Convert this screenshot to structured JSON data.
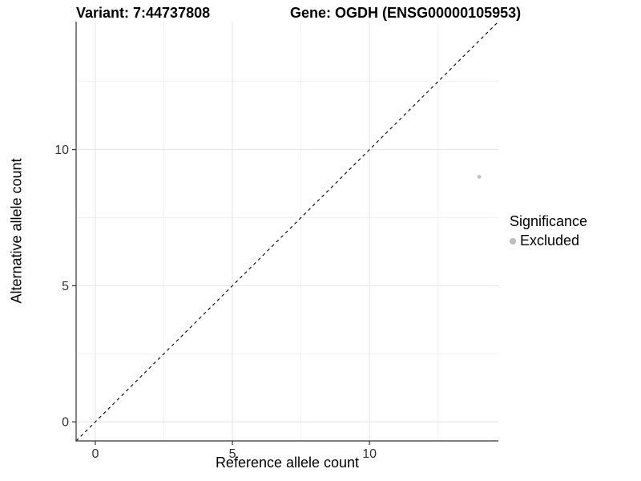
{
  "chart_data": {
    "type": "scatter",
    "title_left": "Variant: 7:44737808",
    "title_right": "Gene: OGDH (ENSG00000105953)",
    "xlabel": "Reference allele count",
    "ylabel": "Alternative allele count",
    "xlim": [
      -0.7,
      14.7
    ],
    "ylim": [
      -0.7,
      14.7
    ],
    "x_ticks": [
      0,
      5,
      10
    ],
    "y_ticks": [
      0,
      5,
      10
    ],
    "x_minor_ticks": [
      2.5,
      7.5,
      12.5
    ],
    "y_minor_ticks": [
      2.5,
      7.5,
      12.5
    ],
    "grid": "major and minor gridlines on, white background",
    "series": [
      {
        "name": "Excluded",
        "color": "#bebebe",
        "values": [
          [
            14,
            9
          ]
        ]
      }
    ],
    "identity_line": {
      "slope": 1,
      "intercept": 0,
      "style": "dashed",
      "color": "#000000"
    },
    "legend": {
      "title": "Significance",
      "position": "right",
      "entries": [
        {
          "label": "Excluded",
          "color": "#bebebe"
        }
      ]
    },
    "colors": {
      "axis": "#333333",
      "tick_label": "#333333",
      "grid_major": "#e4e4e4",
      "grid_minor": "#f0f0f0",
      "background": "#ffffff"
    }
  }
}
